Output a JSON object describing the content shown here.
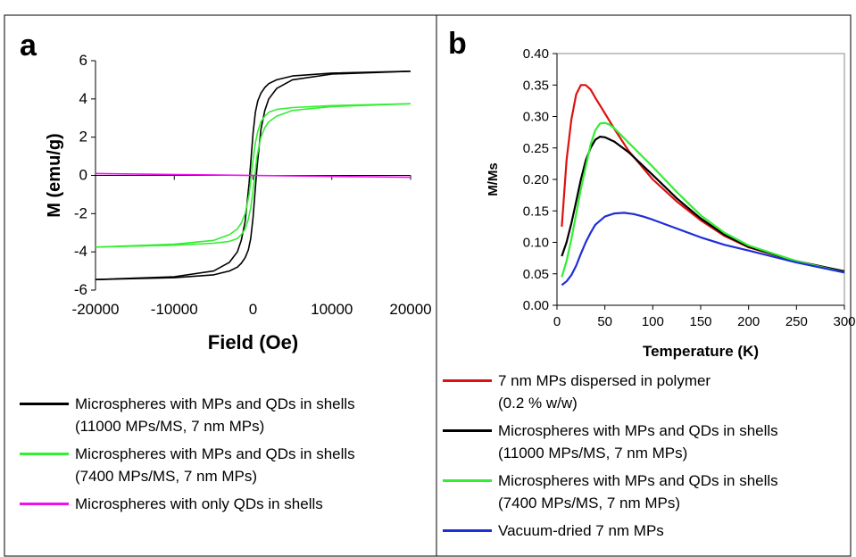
{
  "chart_data": [
    {
      "type": "line",
      "panel_label": "a",
      "xlabel": "Field (Oe)",
      "ylabel": "M (emu/g)",
      "xlim": [
        -20000,
        20000
      ],
      "ylim": [
        -6,
        6
      ],
      "xticks": [
        -20000,
        -10000,
        0,
        10000,
        20000
      ],
      "xtick_labels": [
        "-20000",
        "-10000",
        "0",
        "10000",
        "20000"
      ],
      "yticks": [
        6,
        4,
        2,
        0,
        -2,
        -4,
        -6
      ],
      "ytick_labels": [
        "6",
        "4",
        "2",
        "0",
        "-2",
        "-4",
        "-6"
      ],
      "grid": false,
      "legend_position": "below",
      "series": [
        {
          "name": "Microspheres with MPs and QDs in shells (11000 MPs/MS, 7 nm MPs)",
          "legend_lines": [
            "Microspheres with MPs and QDs in shells",
            "(11000 MPs/MS, 7 nm MPs)"
          ],
          "color": "#000000",
          "branches": [
            {
              "x": [
                -20000,
                -10000,
                -5000,
                -3000,
                -2000,
                -1500,
                -1000,
                -500,
                0,
                300,
                600,
                1000,
                1500,
                2000,
                3000,
                5000,
                10000,
                20000
              ],
              "y": [
                -5.45,
                -5.3,
                -5.0,
                -4.55,
                -4.0,
                -3.4,
                -2.4,
                -0.4,
                2.2,
                3.3,
                3.9,
                4.3,
                4.6,
                4.8,
                5.0,
                5.2,
                5.35,
                5.45
              ]
            },
            {
              "x": [
                -20000,
                -10000,
                -5000,
                -3000,
                -2000,
                -1500,
                -1000,
                -600,
                -300,
                0,
                500,
                1000,
                1500,
                2000,
                3000,
                5000,
                10000,
                20000
              ],
              "y": [
                -5.45,
                -5.35,
                -5.2,
                -5.0,
                -4.8,
                -4.6,
                -4.3,
                -3.9,
                -3.3,
                -2.2,
                0.4,
                2.4,
                3.4,
                4.0,
                4.55,
                5.0,
                5.3,
                5.45
              ]
            }
          ]
        },
        {
          "name": "Microspheres with MPs and QDs in shells (7400 MPs/MS, 7 nm MPs)",
          "legend_lines": [
            "Microspheres with MPs and QDs in shells",
            "(7400 MPs/MS, 7 nm MPs)"
          ],
          "color": "#33ee33",
          "branches": [
            {
              "x": [
                -20000,
                -10000,
                -5000,
                -3000,
                -2000,
                -1500,
                -1000,
                -500,
                0,
                300,
                600,
                1000,
                1500,
                2000,
                3000,
                5000,
                10000,
                20000
              ],
              "y": [
                -3.75,
                -3.6,
                -3.4,
                -3.1,
                -2.8,
                -2.5,
                -2.0,
                -1.0,
                0.8,
                1.7,
                2.3,
                2.8,
                3.1,
                3.3,
                3.45,
                3.55,
                3.65,
                3.75
              ]
            },
            {
              "x": [
                -20000,
                -10000,
                -5000,
                -3000,
                -2000,
                -1500,
                -1000,
                -600,
                -300,
                0,
                500,
                1000,
                1500,
                2000,
                3000,
                5000,
                10000,
                20000
              ],
              "y": [
                -3.75,
                -3.65,
                -3.55,
                -3.45,
                -3.3,
                -3.1,
                -2.8,
                -2.3,
                -1.7,
                -0.8,
                1.0,
                2.0,
                2.5,
                2.8,
                3.1,
                3.4,
                3.6,
                3.75
              ]
            }
          ]
        },
        {
          "name": "Microspheres with only QDs in shells",
          "legend_lines": [
            "Microspheres with only QDs in shells"
          ],
          "color": "#ee11ee",
          "branches": [
            {
              "x": [
                -20000,
                20000
              ],
              "y": [
                0.1,
                -0.1
              ]
            }
          ]
        }
      ]
    },
    {
      "type": "line",
      "panel_label": "b",
      "xlabel": "Temperature (K)",
      "ylabel": "M/Ms",
      "xlim": [
        0,
        300
      ],
      "ylim": [
        0,
        0.4
      ],
      "xticks": [
        0,
        50,
        100,
        150,
        200,
        250,
        300
      ],
      "xtick_labels": [
        "0",
        "50",
        "100",
        "150",
        "200",
        "250",
        "300"
      ],
      "yticks": [
        0.4,
        0.35,
        0.3,
        0.25,
        0.2,
        0.15,
        0.1,
        0.05,
        0.0
      ],
      "ytick_labels": [
        "0.40",
        "0.35",
        "0.30",
        "0.25",
        "0.20",
        "0.15",
        "0.10",
        "0.05",
        "0.00"
      ],
      "grid": false,
      "legend_position": "below",
      "series": [
        {
          "name": "7 nm MPs dispersed in polymer (0.2 % w/w)",
          "legend_lines": [
            "7 nm MPs dispersed in polymer",
            "(0.2 % w/w)"
          ],
          "color": "#dd1111",
          "x": [
            5,
            10,
            15,
            20,
            25,
            30,
            35,
            40,
            50,
            60,
            75,
            100,
            125,
            150,
            175,
            200,
            250,
            300
          ],
          "y": [
            0.125,
            0.23,
            0.295,
            0.335,
            0.35,
            0.35,
            0.343,
            0.33,
            0.305,
            0.28,
            0.245,
            0.2,
            0.165,
            0.135,
            0.11,
            0.092,
            0.07,
            0.054
          ]
        },
        {
          "name": "Microspheres with MPs and QDs in shells (11000 MPs/MS, 7 nm MPs)",
          "legend_lines": [
            "Microspheres with MPs and QDs in shells",
            "(11000 MPs/MS, 7 nm MPs)"
          ],
          "color": "#000000",
          "x": [
            5,
            10,
            15,
            20,
            25,
            30,
            35,
            40,
            45,
            50,
            60,
            75,
            100,
            125,
            150,
            175,
            200,
            250,
            300
          ],
          "y": [
            0.078,
            0.1,
            0.13,
            0.165,
            0.2,
            0.23,
            0.25,
            0.263,
            0.268,
            0.267,
            0.26,
            0.243,
            0.207,
            0.17,
            0.138,
            0.112,
            0.093,
            0.07,
            0.054
          ]
        },
        {
          "name": "Microspheres with MPs and QDs in shells (7400 MPs/MS, 7 nm MPs)",
          "legend_lines": [
            "Microspheres with MPs and QDs in shells",
            "(7400 MPs/MS, 7 nm MPs)"
          ],
          "color": "#33ee33",
          "x": [
            5,
            10,
            15,
            20,
            25,
            30,
            35,
            40,
            45,
            50,
            55,
            60,
            75,
            100,
            125,
            150,
            175,
            200,
            250,
            300
          ],
          "y": [
            0.045,
            0.07,
            0.105,
            0.145,
            0.185,
            0.22,
            0.255,
            0.278,
            0.289,
            0.29,
            0.287,
            0.281,
            0.258,
            0.22,
            0.18,
            0.143,
            0.115,
            0.095,
            0.07,
            0.052
          ]
        },
        {
          "name": "Vacuum-dried 7 nm MPs",
          "legend_lines": [
            "Vacuum-dried 7 nm MPs"
          ],
          "color": "#1f2ed6",
          "x": [
            5,
            10,
            15,
            20,
            25,
            30,
            35,
            40,
            50,
            60,
            70,
            80,
            90,
            100,
            125,
            150,
            175,
            200,
            250,
            300
          ],
          "y": [
            0.032,
            0.038,
            0.048,
            0.063,
            0.082,
            0.1,
            0.115,
            0.128,
            0.141,
            0.146,
            0.147,
            0.145,
            0.141,
            0.136,
            0.122,
            0.108,
            0.096,
            0.087,
            0.068,
            0.052
          ]
        }
      ]
    }
  ]
}
